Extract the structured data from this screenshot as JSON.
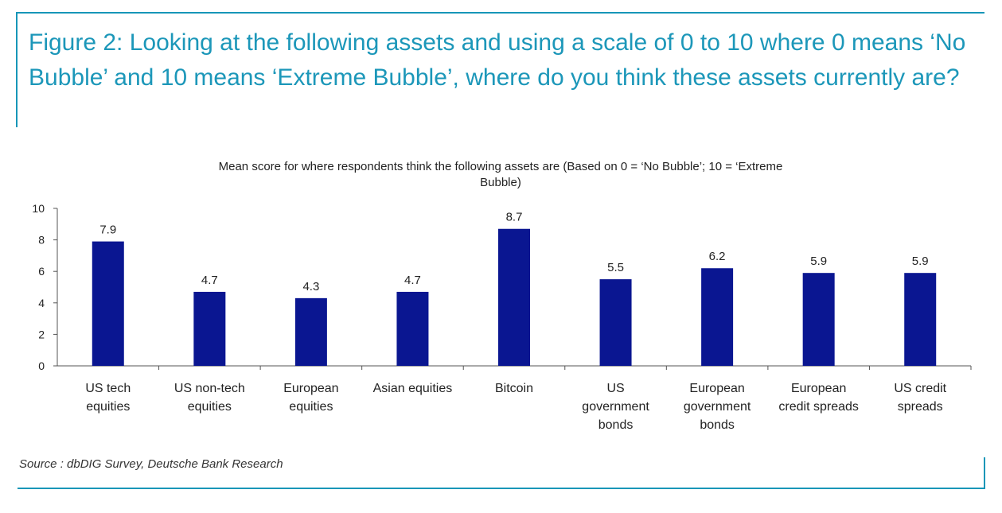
{
  "figure": {
    "title": "Figure 2: Looking at the following assets and using a scale of 0 to 10 where 0 means ‘No Bubble’ and 10 means ‘Extreme Bubble’, where do you think these assets currently are?",
    "source": "Source : dbDIG Survey, Deutsche Bank Research"
  },
  "colors": {
    "accent": "#1c97b9",
    "bar": "#0a1691",
    "axis": "#555555"
  },
  "chart_data": {
    "type": "bar",
    "title_lines": [
      "Mean score for where respondents think the following assets are (Based on 0 = ‘No Bubble’; 10 = ‘Extreme",
      "Bubble)"
    ],
    "categories": [
      [
        "US tech",
        "equities"
      ],
      [
        "US non-tech",
        "equities"
      ],
      [
        "European",
        "equities"
      ],
      [
        "Asian equities"
      ],
      [
        "Bitcoin"
      ],
      [
        "US",
        "government",
        "bonds"
      ],
      [
        "European",
        "government",
        "bonds"
      ],
      [
        "European",
        "credit spreads"
      ],
      [
        "US credit",
        "spreads"
      ]
    ],
    "values": [
      7.9,
      4.7,
      4.3,
      4.7,
      8.7,
      5.5,
      6.2,
      5.9,
      5.9
    ],
    "data_labels": [
      "7.9",
      "4.7",
      "4.3",
      "4.7",
      "8.7",
      "5.5",
      "6.2",
      "5.9",
      "5.9"
    ],
    "y_ticks": [
      0,
      2,
      4,
      6,
      8,
      10
    ],
    "ylim": [
      0,
      10
    ],
    "xlabel": "",
    "ylabel": "",
    "grid": false,
    "legend": "none"
  }
}
